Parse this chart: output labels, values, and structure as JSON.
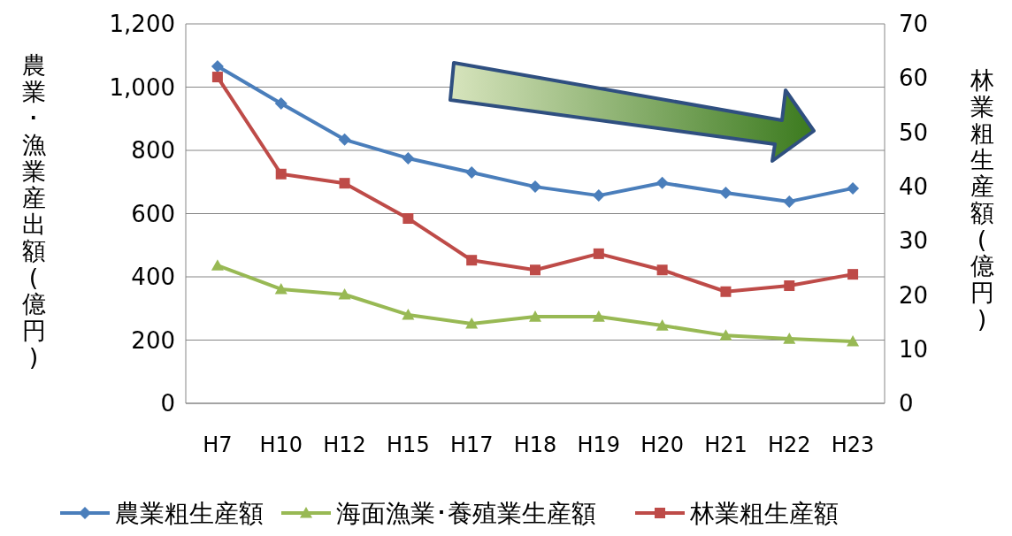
{
  "chart_data": {
    "type": "line",
    "ylabel": "農業･漁業産出額(億円)",
    "y2label": "林業粗生産額(億円)",
    "categories": [
      "H7",
      "H10",
      "H12",
      "H15",
      "H17",
      "H18",
      "H19",
      "H20",
      "H21",
      "H22",
      "H23"
    ],
    "series": [
      {
        "name": "農業粗生産額",
        "color": "#4a7ebb",
        "marker": "diamond",
        "values": [
          1066,
          948,
          834,
          775,
          730,
          685,
          657,
          697,
          666,
          638,
          680
        ]
      },
      {
        "name": "海面漁業･養殖業生産額",
        "color": "#98b954",
        "marker": "triangle",
        "values": [
          436,
          361,
          344,
          280,
          252,
          274,
          274,
          246,
          215,
          204,
          196
        ]
      },
      {
        "name": "林業粗生産額",
        "color": "#be4b48",
        "marker": "square",
        "axis": "y2",
        "values": [
          60.2,
          42.3,
          40.6,
          34.1,
          26.4,
          24.6,
          27.6,
          24.6,
          20.6,
          21.7,
          23.8
        ]
      }
    ],
    "ylim": [
      0,
      1200
    ],
    "yticks": [
      0,
      {
        "value": 200,
        "label": "200"
      },
      {
        "value": 400,
        "label": "400"
      },
      {
        "value": 600,
        "label": "600"
      },
      {
        "value": 800,
        "label": "800"
      },
      {
        "value": 1000,
        "label": "1,000"
      },
      {
        "value": 1200,
        "label": "1,200"
      }
    ],
    "y2lim": [
      0,
      70
    ],
    "y2ticks": [
      0,
      10,
      20,
      30,
      40,
      50,
      60,
      70
    ],
    "grid": "y",
    "legend": "bottom",
    "line_style": "solid"
  }
}
